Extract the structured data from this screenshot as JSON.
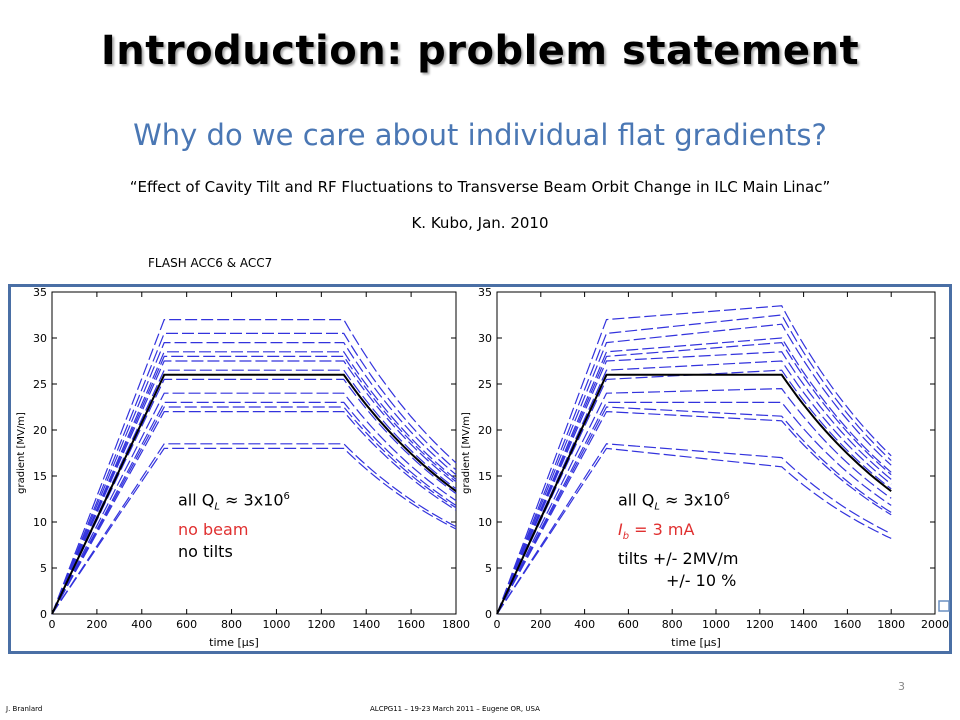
{
  "title": "Introduction: problem statement",
  "subtitle": "Why do we care about individual flat gradients?",
  "quote": "“Effect of Cavity Tilt and RF Fluctuations to Transverse Beam Orbit Change in ILC Main Linac”",
  "author": "K. Kubo, Jan. 2010",
  "flash_label": "FLASH ACC6 & ACC7",
  "left_annotation": {
    "ql_prefix": "all Q",
    "ql_sub": "L",
    "ql_approx": " ≈ 3x10",
    "ql_sup": "6",
    "beam": "no beam",
    "tilts": "no tilts"
  },
  "right_annotation": {
    "ql_prefix": "all Q",
    "ql_sub": "L",
    "ql_approx": " ≈ 3x10",
    "ql_sup": "6",
    "ib_prefix": "I",
    "ib_sub": "b",
    "ib_rest": " = 3 mA",
    "tilts1": "tilts  +/- 2MV/m",
    "tilts2": "+/- 10 %"
  },
  "footer": {
    "left": "J. Branlard",
    "center": "ALCPG11 – 19-23 March 2011 – Eugene OR, USA",
    "page": "3"
  },
  "colors": {
    "accent": "#4a77b4",
    "frame": "#4a6fa5",
    "traces": "#3333dd",
    "mean": "#000000",
    "highlight": "#e03030"
  },
  "chart_data": [
    {
      "type": "line",
      "title": "",
      "xlabel": "time [μs]",
      "ylabel": "gradient [MV/m]",
      "xlim": [
        0,
        1800
      ],
      "ylim": [
        0,
        35
      ],
      "xticks": [
        "0",
        "200",
        "400",
        "600",
        "800",
        "1000",
        "1200",
        "1400",
        "1600",
        "1800"
      ],
      "yticks": [
        "0",
        "5",
        "10",
        "15",
        "20",
        "25",
        "30",
        "35"
      ],
      "flat_levels": [
        32,
        30.5,
        29.5,
        28.5,
        28,
        27.5,
        26.5,
        25.5,
        24,
        23,
        22.5,
        22,
        18.5,
        18
      ],
      "mean": {
        "x": [
          0,
          500,
          1300,
          1800
        ],
        "y": [
          0,
          26,
          26,
          13.5
        ]
      }
    },
    {
      "type": "line",
      "title": "",
      "xlabel": "time [μs]",
      "ylabel": "gradient [MV/m]",
      "xlim": [
        0,
        2000
      ],
      "ylim": [
        0,
        35
      ],
      "xticks": [
        "0",
        "200",
        "400",
        "600",
        "800",
        "1000",
        "1200",
        "1400",
        "1600",
        "1800",
        "2000"
      ],
      "yticks": [
        "0",
        "5",
        "10",
        "15",
        "20",
        "25",
        "30",
        "35"
      ],
      "tilt_start_levels": [
        32,
        30.5,
        29.5,
        28.5,
        28,
        27.5,
        26.5,
        25.5,
        24,
        23,
        22.5,
        22,
        18.5,
        18
      ],
      "tilt_end_levels": [
        33.5,
        32.5,
        31.5,
        30,
        29.5,
        28.5,
        27.5,
        26.5,
        24.5,
        23,
        21.5,
        21,
        17,
        16
      ],
      "mean": {
        "x": [
          0,
          500,
          1300,
          1800
        ],
        "y": [
          0,
          26,
          26,
          13.5
        ]
      }
    }
  ]
}
